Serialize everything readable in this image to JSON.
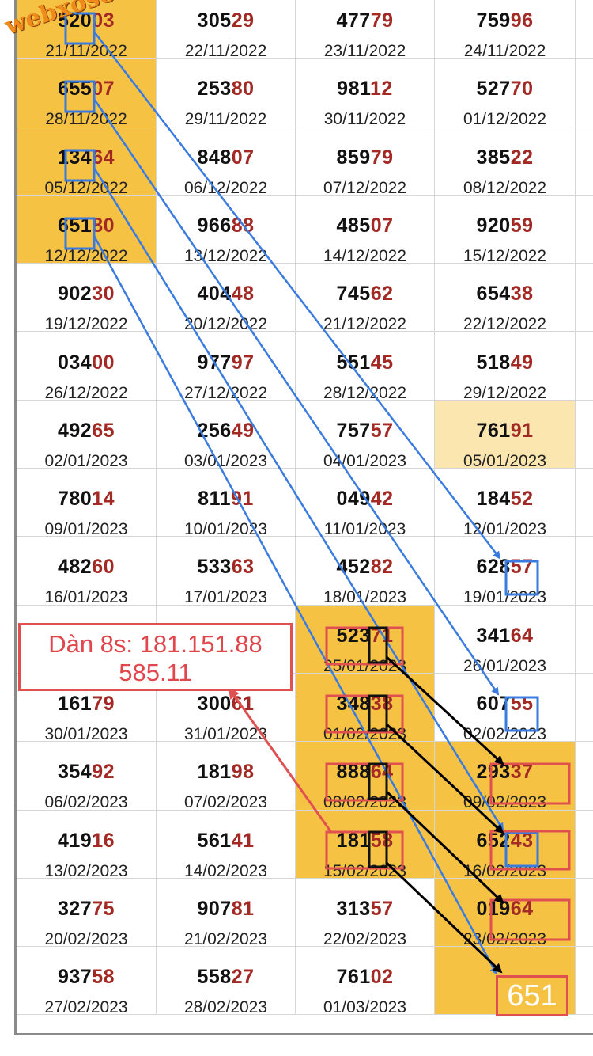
{
  "watermark": "webxoso.net",
  "note": "Dàn 8s: 181.151.88\n585.11",
  "result": "651",
  "colors": {
    "highlight": "#f5c244",
    "highlight_light": "#fbe6b0",
    "tail": "#a32a24",
    "blue_arrow": "#3a7be0",
    "red_box": "#e05050"
  },
  "rows": [
    {
      "cells": [
        {
          "head": "520",
          "tail": "03",
          "date": "21/11/2022",
          "hl": "dark"
        },
        {
          "head": "305",
          "tail": "29",
          "date": "22/11/2022"
        },
        {
          "head": "477",
          "tail": "79",
          "date": "23/11/2022"
        },
        {
          "head": "759",
          "tail": "96",
          "date": "24/11/2022"
        }
      ]
    },
    {
      "cells": [
        {
          "head": "655",
          "tail": "07",
          "date": "28/11/2022",
          "hl": "dark"
        },
        {
          "head": "253",
          "tail": "80",
          "date": "29/11/2022"
        },
        {
          "head": "981",
          "tail": "12",
          "date": "30/11/2022"
        },
        {
          "head": "527",
          "tail": "70",
          "date": "01/12/2022"
        }
      ]
    },
    {
      "cells": [
        {
          "head": "134",
          "tail": "64",
          "date": "05/12/2022",
          "hl": "dark"
        },
        {
          "head": "848",
          "tail": "07",
          "date": "06/12/2022"
        },
        {
          "head": "859",
          "tail": "79",
          "date": "07/12/2022"
        },
        {
          "head": "385",
          "tail": "22",
          "date": "08/12/2022"
        }
      ]
    },
    {
      "cells": [
        {
          "head": "651",
          "tail": "80",
          "date": "12/12/2022",
          "hl": "dark"
        },
        {
          "head": "966",
          "tail": "88",
          "date": "13/12/2022"
        },
        {
          "head": "485",
          "tail": "07",
          "date": "14/12/2022"
        },
        {
          "head": "920",
          "tail": "59",
          "date": "15/12/2022"
        }
      ]
    },
    {
      "cells": [
        {
          "head": "902",
          "tail": "30",
          "date": "19/12/2022"
        },
        {
          "head": "404",
          "tail": "48",
          "date": "20/12/2022"
        },
        {
          "head": "745",
          "tail": "62",
          "date": "21/12/2022"
        },
        {
          "head": "654",
          "tail": "38",
          "date": "22/12/2022"
        }
      ]
    },
    {
      "cells": [
        {
          "head": "034",
          "tail": "00",
          "date": "26/12/2022"
        },
        {
          "head": "977",
          "tail": "97",
          "date": "27/12/2022"
        },
        {
          "head": "551",
          "tail": "45",
          "date": "28/12/2022"
        },
        {
          "head": "518",
          "tail": "49",
          "date": "29/12/2022"
        }
      ]
    },
    {
      "cells": [
        {
          "head": "492",
          "tail": "65",
          "date": "02/01/2023"
        },
        {
          "head": "256",
          "tail": "49",
          "date": "03/01/2023"
        },
        {
          "head": "757",
          "tail": "57",
          "date": "04/01/2023"
        },
        {
          "head": "761",
          "tail": "91",
          "date": "05/01/2023",
          "hl": "light"
        }
      ]
    },
    {
      "cells": [
        {
          "head": "780",
          "tail": "14",
          "date": "09/01/2023"
        },
        {
          "head": "811",
          "tail": "91",
          "date": "10/01/2023"
        },
        {
          "head": "049",
          "tail": "42",
          "date": "11/01/2023"
        },
        {
          "head": "184",
          "tail": "52",
          "date": "12/01/2023"
        }
      ]
    },
    {
      "cells": [
        {
          "head": "482",
          "tail": "60",
          "date": "16/01/2023"
        },
        {
          "head": "533",
          "tail": "63",
          "date": "17/01/2023"
        },
        {
          "head": "452",
          "tail": "82",
          "date": "18/01/2023"
        },
        {
          "head": "628",
          "tail": "57",
          "date": "19/01/2023"
        }
      ]
    },
    {
      "cells": [
        {
          "head": "",
          "tail": "",
          "date": ""
        },
        {
          "head": "",
          "tail": "",
          "date": ""
        },
        {
          "head": "523",
          "tail": "71",
          "date": "25/01/2023",
          "hl": "dark"
        },
        {
          "head": "341",
          "tail": "64",
          "date": "26/01/2023"
        }
      ]
    },
    {
      "cells": [
        {
          "head": "161",
          "tail": "79",
          "date": "30/01/2023"
        },
        {
          "head": "300",
          "tail": "61",
          "date": "31/01/2023"
        },
        {
          "head": "348",
          "tail": "38",
          "date": "01/02/2023",
          "hl": "dark"
        },
        {
          "head": "607",
          "tail": "55",
          "date": "02/02/2023"
        }
      ]
    },
    {
      "cells": [
        {
          "head": "354",
          "tail": "92",
          "date": "06/02/2023"
        },
        {
          "head": "181",
          "tail": "98",
          "date": "07/02/2023"
        },
        {
          "head": "888",
          "tail": "64",
          "date": "08/02/2023",
          "hl": "dark"
        },
        {
          "head": "293",
          "tail": "37",
          "date": "09/02/2023",
          "hl": "dark"
        }
      ]
    },
    {
      "cells": [
        {
          "head": "419",
          "tail": "16",
          "date": "13/02/2023"
        },
        {
          "head": "561",
          "tail": "41",
          "date": "14/02/2023"
        },
        {
          "head": "181",
          "tail": "58",
          "date": "15/02/2023",
          "hl": "dark"
        },
        {
          "head": "652",
          "tail": "43",
          "date": "16/02/2023",
          "hl": "dark"
        }
      ]
    },
    {
      "cells": [
        {
          "head": "327",
          "tail": "75",
          "date": "20/02/2023"
        },
        {
          "head": "907",
          "tail": "81",
          "date": "21/02/2023"
        },
        {
          "head": "313",
          "tail": "57",
          "date": "22/02/2023"
        },
        {
          "head": "019",
          "tail": "64",
          "date": "23/02/2023",
          "hl": "dark"
        }
      ]
    },
    {
      "cells": [
        {
          "head": "937",
          "tail": "58",
          "date": "27/02/2023"
        },
        {
          "head": "558",
          "tail": "27",
          "date": "28/02/2023"
        },
        {
          "head": "761",
          "tail": "02",
          "date": "01/03/2023"
        },
        {
          "head": "",
          "tail": "",
          "date": "",
          "hl": "dark"
        }
      ]
    }
  ]
}
